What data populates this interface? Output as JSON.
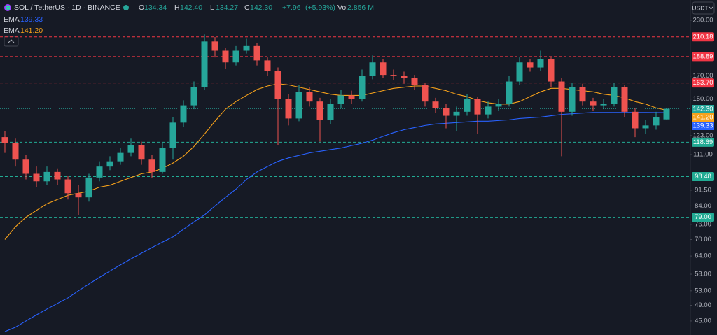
{
  "chart_data": {
    "type": "candlestick",
    "title": "SOL / TetherUS · 1D · BINANCE",
    "currency": "USDT",
    "last": {
      "labels": [
        "O",
        "H",
        "L",
        "C"
      ],
      "value_labels": [
        "134.34",
        "142.40",
        "134.27",
        "142.30"
      ],
      "change": "+7.96",
      "change_pct": "(+5.93%)",
      "volume_label": "Vol",
      "volume": "2.856 M"
    },
    "log_scale": true,
    "ylim": [
      41.7,
      238
    ],
    "yticks": [
      {
        "value": 230,
        "label": "230.00"
      },
      {
        "value": 170,
        "label": "170.00"
      },
      {
        "value": 150,
        "label": "150.00"
      },
      {
        "value": 123,
        "label": "123.00"
      },
      {
        "value": 111,
        "label": "111.00"
      },
      {
        "value": 91.5,
        "label": "91.50"
      },
      {
        "value": 84,
        "label": "84.00"
      },
      {
        "value": 76,
        "label": "76.00"
      },
      {
        "value": 70,
        "label": "70.00"
      },
      {
        "value": 64,
        "label": "64.00"
      },
      {
        "value": 58,
        "label": "58.00"
      },
      {
        "value": 53,
        "label": "53.00"
      },
      {
        "value": 49,
        "label": "49.00"
      },
      {
        "value": 45,
        "label": "45.00"
      }
    ],
    "up_color": "#26a69a",
    "down_color": "#ef5350",
    "open": [
      122,
      118,
      108,
      100,
      96,
      101,
      97,
      90,
      88,
      98,
      104,
      107,
      112,
      117,
      108,
      101,
      115,
      132,
      145,
      160,
      205,
      195,
      183,
      195,
      200,
      185,
      175,
      150,
      135,
      156,
      148,
      134,
      146,
      153,
      150,
      170,
      183,
      171,
      170,
      168,
      162,
      148,
      143,
      137,
      140,
      150,
      138,
      144,
      146,
      165,
      183,
      178,
      186,
      165,
      140,
      160,
      148,
      145,
      146,
      160,
      140,
      128,
      130,
      134.34
    ],
    "high": [
      126,
      121,
      111,
      104,
      104,
      103,
      99,
      94,
      100,
      107,
      110,
      115,
      121,
      119,
      111,
      118,
      136,
      149,
      165,
      213,
      210,
      198,
      200,
      208,
      203,
      188,
      178,
      154,
      162,
      160,
      151,
      150,
      158,
      157,
      176,
      190,
      186,
      176,
      174,
      171,
      164,
      151,
      146,
      144,
      154,
      152,
      148,
      150,
      170,
      188,
      186,
      195,
      189,
      168,
      164,
      163,
      151,
      150,
      164,
      162,
      143,
      134,
      140,
      142.4
    ],
    "low": [
      112,
      104,
      97,
      93,
      94,
      94,
      87,
      80,
      86,
      96,
      102,
      105,
      110,
      105,
      98,
      100,
      108,
      129,
      142,
      158,
      188,
      177,
      180,
      192,
      180,
      170,
      117,
      130,
      133,
      144,
      119,
      131,
      143,
      146,
      148,
      167,
      168,
      166,
      163,
      158,
      144,
      139,
      128,
      126,
      137,
      124,
      135,
      141,
      144,
      162,
      174,
      175,
      160,
      110,
      137,
      145,
      141,
      142,
      144,
      136,
      122,
      124,
      127,
      134.27
    ],
    "close": [
      118,
      108,
      100,
      96,
      101,
      97,
      90,
      88,
      98,
      104,
      107,
      112,
      117,
      108,
      101,
      115,
      132,
      145,
      160,
      205,
      195,
      183,
      195,
      200,
      185,
      175,
      150,
      135,
      156,
      148,
      134,
      146,
      153,
      150,
      170,
      183,
      171,
      170,
      168,
      162,
      148,
      143,
      137,
      140,
      150,
      138,
      144,
      146,
      165,
      183,
      178,
      186,
      165,
      140,
      160,
      148,
      145,
      146,
      160,
      140,
      128,
      130,
      136,
      142.3
    ],
    "series": [
      {
        "name": "EMA",
        "color": "#2962ff",
        "value_label": "139.33",
        "values": [
          42.5,
          43.5,
          45,
          46.5,
          48,
          49.5,
          51,
          53,
          55,
          57,
          59,
          61,
          63,
          65,
          67,
          69,
          71,
          74,
          77,
          80,
          84,
          88,
          92,
          97,
          101,
          104,
          107,
          109,
          110.5,
          112,
          113,
          114,
          115,
          116.5,
          118,
          120,
          122.5,
          125,
          127,
          128.5,
          130,
          131,
          131.5,
          132,
          132.5,
          133,
          133,
          133.5,
          134,
          135,
          135.5,
          136,
          137,
          138,
          138.5,
          139,
          139.5,
          139.5,
          139.5,
          139.5,
          139.5,
          139.5,
          139.4,
          139.33
        ]
      },
      {
        "name": "EMA",
        "color": "#f7a21b",
        "value_label": "141.20",
        "values": [
          70,
          75,
          79,
          82,
          85,
          87,
          89,
          90,
          91,
          93,
          94,
          96,
          98,
          100,
          101,
          103,
          106,
          110,
          116,
          124,
          133,
          142,
          148,
          153,
          158,
          161,
          163,
          162,
          160,
          158,
          156,
          154,
          153,
          153,
          153,
          155,
          157,
          159,
          160,
          161,
          161,
          159,
          157,
          154,
          152,
          149,
          147,
          146,
          146,
          148,
          152,
          156,
          159,
          159,
          158,
          157,
          156,
          154,
          153,
          151,
          148,
          146,
          143,
          141.2
        ]
      }
    ],
    "levels": [
      {
        "value": 210.18,
        "label": "210.18",
        "color": "#f23645"
      },
      {
        "value": 188.89,
        "label": "188.89",
        "color": "#f23645"
      },
      {
        "value": 163.7,
        "label": "163.70",
        "color": "#f23645"
      },
      {
        "value": 118.69,
        "label": "118.69",
        "color": "#22ab94"
      },
      {
        "value": 98.48,
        "label": "98.48",
        "color": "#22ab94"
      },
      {
        "value": 79,
        "label": "79.00",
        "color": "#22ab94"
      }
    ]
  }
}
